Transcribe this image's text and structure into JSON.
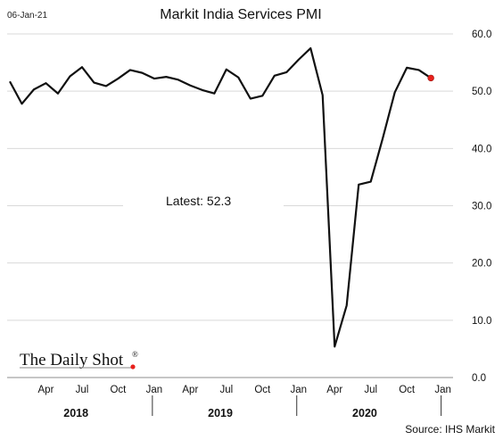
{
  "header": {
    "date": "06-Jan-21"
  },
  "chart_data": {
    "type": "line",
    "title": "Markit India Services PMI",
    "x": [
      "2018-01",
      "2018-02",
      "2018-03",
      "2018-04",
      "2018-05",
      "2018-06",
      "2018-07",
      "2018-08",
      "2018-09",
      "2018-10",
      "2018-11",
      "2018-12",
      "2019-01",
      "2019-02",
      "2019-03",
      "2019-04",
      "2019-05",
      "2019-06",
      "2019-07",
      "2019-08",
      "2019-09",
      "2019-10",
      "2019-11",
      "2019-12",
      "2020-01",
      "2020-02",
      "2020-03",
      "2020-04",
      "2020-05",
      "2020-06",
      "2020-07",
      "2020-08",
      "2020-09",
      "2020-10",
      "2020-11",
      "2020-12"
    ],
    "series": [
      {
        "values": [
          51.7,
          47.8,
          50.3,
          51.4,
          49.6,
          52.6,
          54.2,
          51.5,
          50.9,
          52.2,
          53.7,
          53.2,
          52.2,
          52.5,
          52.0,
          51.0,
          50.2,
          49.6,
          53.8,
          52.4,
          48.7,
          49.2,
          52.7,
          53.3,
          55.5,
          57.5,
          49.3,
          5.4,
          12.6,
          33.7,
          34.2,
          41.8,
          49.8,
          54.1,
          53.7,
          52.3
        ],
        "color": "#111111"
      }
    ],
    "last_point_color": "#e8201c",
    "ylim": [
      0,
      60
    ],
    "yticks": [
      "0.0",
      "10.0",
      "20.0",
      "30.0",
      "40.0",
      "50.0",
      "60.0"
    ],
    "yaxis_side": "right",
    "grid": true,
    "month_ticks": [
      "Apr",
      "Jul",
      "Oct",
      "Jan",
      "Apr",
      "Jul",
      "Oct",
      "Jan",
      "Apr",
      "Jul",
      "Oct",
      "Jan"
    ],
    "years": [
      "2018",
      "2019",
      "2020"
    ],
    "annotation": "Latest:  52.3"
  },
  "footer": {
    "source": "Source: IHS Markit",
    "brand": "The Daily Shot",
    "brand_mark": "®",
    "brand_dot_color": "#e8201c"
  }
}
